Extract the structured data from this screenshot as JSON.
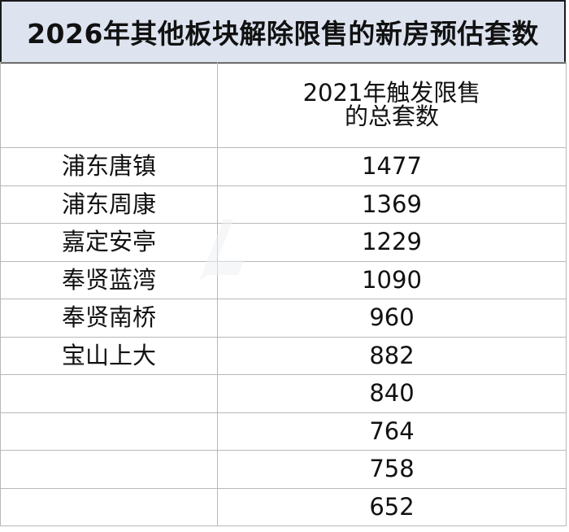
{
  "title": "2026年其他板块解除限售的新房预估套数",
  "header": {
    "name_col": "",
    "count_col_line1": "2021年触发限售",
    "count_col_line2": "的总套数"
  },
  "rows": [
    {
      "name": "浦东唐镇",
      "count": "1477"
    },
    {
      "name": "浦东周康",
      "count": "1369"
    },
    {
      "name": "嘉定安亭",
      "count": "1229"
    },
    {
      "name": "奉贤蓝湾",
      "count": "1090"
    },
    {
      "name": "奉贤南桥",
      "count": "960"
    },
    {
      "name": "宝山上大",
      "count": "882"
    },
    {
      "name": "",
      "count": "840"
    },
    {
      "name": "",
      "count": "764"
    },
    {
      "name": "",
      "count": "758"
    },
    {
      "name": "",
      "count": "652"
    }
  ],
  "watermark": {
    "text": "",
    "color": "#e9ecf1"
  },
  "colors": {
    "title_background": "#dde4f0",
    "grid_line": "#b8b8b8",
    "title_border": "#1a1a1a"
  }
}
